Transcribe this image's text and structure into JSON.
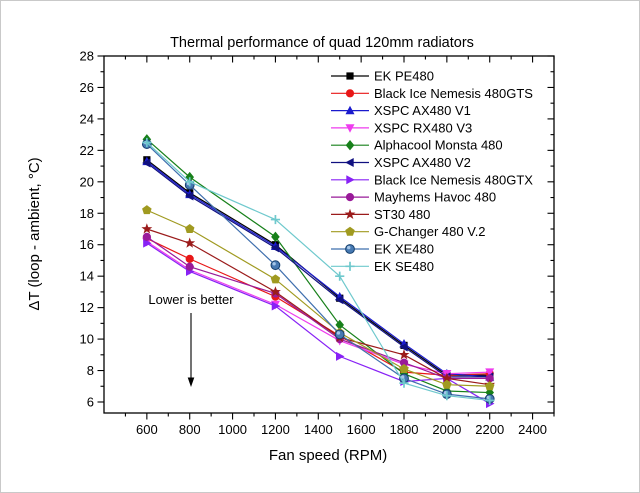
{
  "chart_data": {
    "type": "line",
    "title": "Thermal performance of quad 120mm radiators",
    "xlabel": "Fan speed  (RPM)",
    "ylabel": "ΔT (loop - ambient, °C)",
    "xlim": [
      400,
      2500
    ],
    "ylim": [
      5.3,
      28
    ],
    "x_major_ticks": [
      600,
      800,
      1000,
      1200,
      1400,
      1600,
      1800,
      2000,
      2200,
      2400
    ],
    "x_minor_ticks": [
      500,
      700,
      900,
      1100,
      1300,
      1500,
      1700,
      1900,
      2100,
      2300,
      2500
    ],
    "y_major_ticks": [
      6,
      8,
      10,
      12,
      14,
      16,
      18,
      20,
      22,
      24,
      26,
      28
    ],
    "y_minor_ticks": [
      7,
      9,
      11,
      13,
      15,
      17,
      19,
      21,
      23,
      25,
      27
    ],
    "grid": false,
    "legend_position": "top-right-inside",
    "x": [
      600,
      800,
      1200,
      1500,
      1800,
      2000,
      2200
    ],
    "series": [
      {
        "name": "EK PE480",
        "marker": "square",
        "color": "#000000",
        "values": [
          21.4,
          19.3,
          16.0,
          12.6,
          9.6,
          7.7,
          7.7
        ]
      },
      {
        "name": "Black Ice Nemesis 480GTS",
        "marker": "circle",
        "color": "#e81717",
        "values": [
          16.4,
          15.1,
          12.7,
          10.2,
          7.9,
          7.7,
          7.8
        ]
      },
      {
        "name": "XSPC AX480 V1",
        "marker": "triangle-up",
        "color": "#1a1acd",
        "values": [
          21.3,
          19.2,
          15.9,
          12.7,
          9.7,
          7.8,
          7.6
        ]
      },
      {
        "name": "XSPC RX480 V3",
        "marker": "triangle-down",
        "color": "#ee3cee",
        "values": [
          16.2,
          14.4,
          12.2,
          9.9,
          8.4,
          7.8,
          7.9
        ]
      },
      {
        "name": "Alphacool Monsta 480",
        "marker": "diamond",
        "color": "#17801a",
        "values": [
          22.7,
          20.3,
          16.5,
          10.9,
          7.8,
          6.7,
          6.6
        ]
      },
      {
        "name": "XSPC AX480 V2",
        "marker": "triangle-left",
        "color": "#101080",
        "values": [
          21.2,
          19.1,
          15.8,
          12.5,
          9.5,
          7.6,
          7.6
        ]
      },
      {
        "name": "Black Ice Nemesis 480GTX",
        "marker": "triangle-right",
        "color": "#8822f5",
        "values": [
          16.1,
          14.3,
          12.1,
          8.9,
          7.3,
          7.5,
          5.9
        ]
      },
      {
        "name": "Mayhems Havoc 480",
        "marker": "circle",
        "color": "#991a99",
        "values": [
          16.5,
          14.6,
          12.9,
          10.0,
          8.5,
          7.5,
          7.5
        ]
      },
      {
        "name": "ST30 480",
        "marker": "star",
        "color": "#9b1b1b",
        "values": [
          17.0,
          16.1,
          13.0,
          10.1,
          9.0,
          7.5,
          7.1
        ]
      },
      {
        "name": "G-Changer 480 V.2",
        "marker": "pentagon",
        "color": "#a09a20",
        "values": [
          18.2,
          17.0,
          13.8,
          10.4,
          8.1,
          7.1,
          7.0
        ]
      },
      {
        "name": "EK XE480",
        "marker": "sphere",
        "color": "#3f6fae",
        "values": [
          22.4,
          19.8,
          14.7,
          10.3,
          7.5,
          6.5,
          6.2
        ]
      },
      {
        "name": "EK SE480",
        "marker": "plus",
        "color": "#6fc9cd",
        "values": [
          22.5,
          20.0,
          17.6,
          14.0,
          7.2,
          6.4,
          6.1
        ]
      }
    ],
    "annotation": {
      "text": "Lower is better",
      "arrow": "down"
    }
  }
}
